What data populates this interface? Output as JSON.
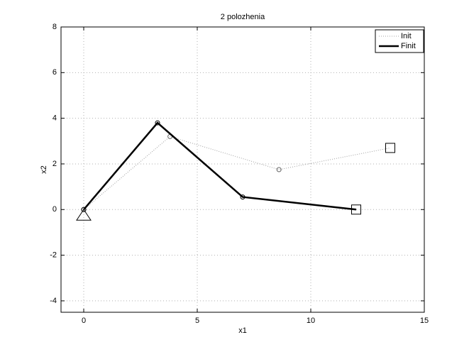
{
  "chart_data": {
    "type": "line",
    "title": "2 polozhenia",
    "x_label": "x1",
    "y_label": "x2",
    "xlim": [
      -1,
      15
    ],
    "xticks": [
      0,
      5,
      10,
      15
    ],
    "ylim": [
      -4.5,
      8
    ],
    "yticks": [
      -4,
      -2,
      0,
      2,
      4,
      6,
      8
    ],
    "grid": true,
    "legend": "northeast",
    "series": [
      {
        "name": "Init",
        "color": "#a0a0a0",
        "style": "dotted",
        "marker": "circle",
        "end_marker": "square",
        "x": [
          0,
          3.8,
          8.6,
          13.5
        ],
        "values": [
          0,
          3.2,
          1.75,
          2.7
        ]
      },
      {
        "name": "Finit",
        "color": "#000000",
        "style": "solid",
        "marker": "circle",
        "end_marker": "square",
        "start_marker": "triangle",
        "x": [
          0,
          3.25,
          7,
          12
        ],
        "values": [
          0,
          3.8,
          0.55,
          0
        ]
      }
    ]
  }
}
